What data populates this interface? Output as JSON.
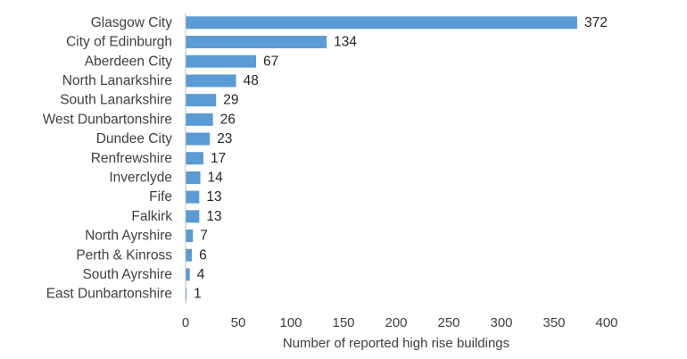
{
  "chart_data": {
    "type": "bar",
    "orientation": "horizontal",
    "categories": [
      "Glasgow City",
      "City of Edinburgh",
      "Aberdeen City",
      "North Lanarkshire",
      "South Lanarkshire",
      "West Dunbartonshire",
      "Dundee City",
      "Renfrewshire",
      "Inverclyde",
      "Fife",
      "Falkirk",
      "North Ayrshire",
      "Perth & Kinross",
      "South Ayrshire",
      "East Dunbartonshire"
    ],
    "values": [
      372,
      134,
      67,
      48,
      29,
      26,
      23,
      17,
      14,
      13,
      13,
      7,
      6,
      4,
      1
    ],
    "xlabel": "Number of reported high rise buildings",
    "ylabel": "",
    "xlim": [
      0,
      400
    ],
    "xticks": [
      0,
      50,
      100,
      150,
      200,
      250,
      300,
      350,
      400
    ],
    "grid": false,
    "legend": "none",
    "bar_color": "#5b9bd5",
    "data_labels": true
  }
}
